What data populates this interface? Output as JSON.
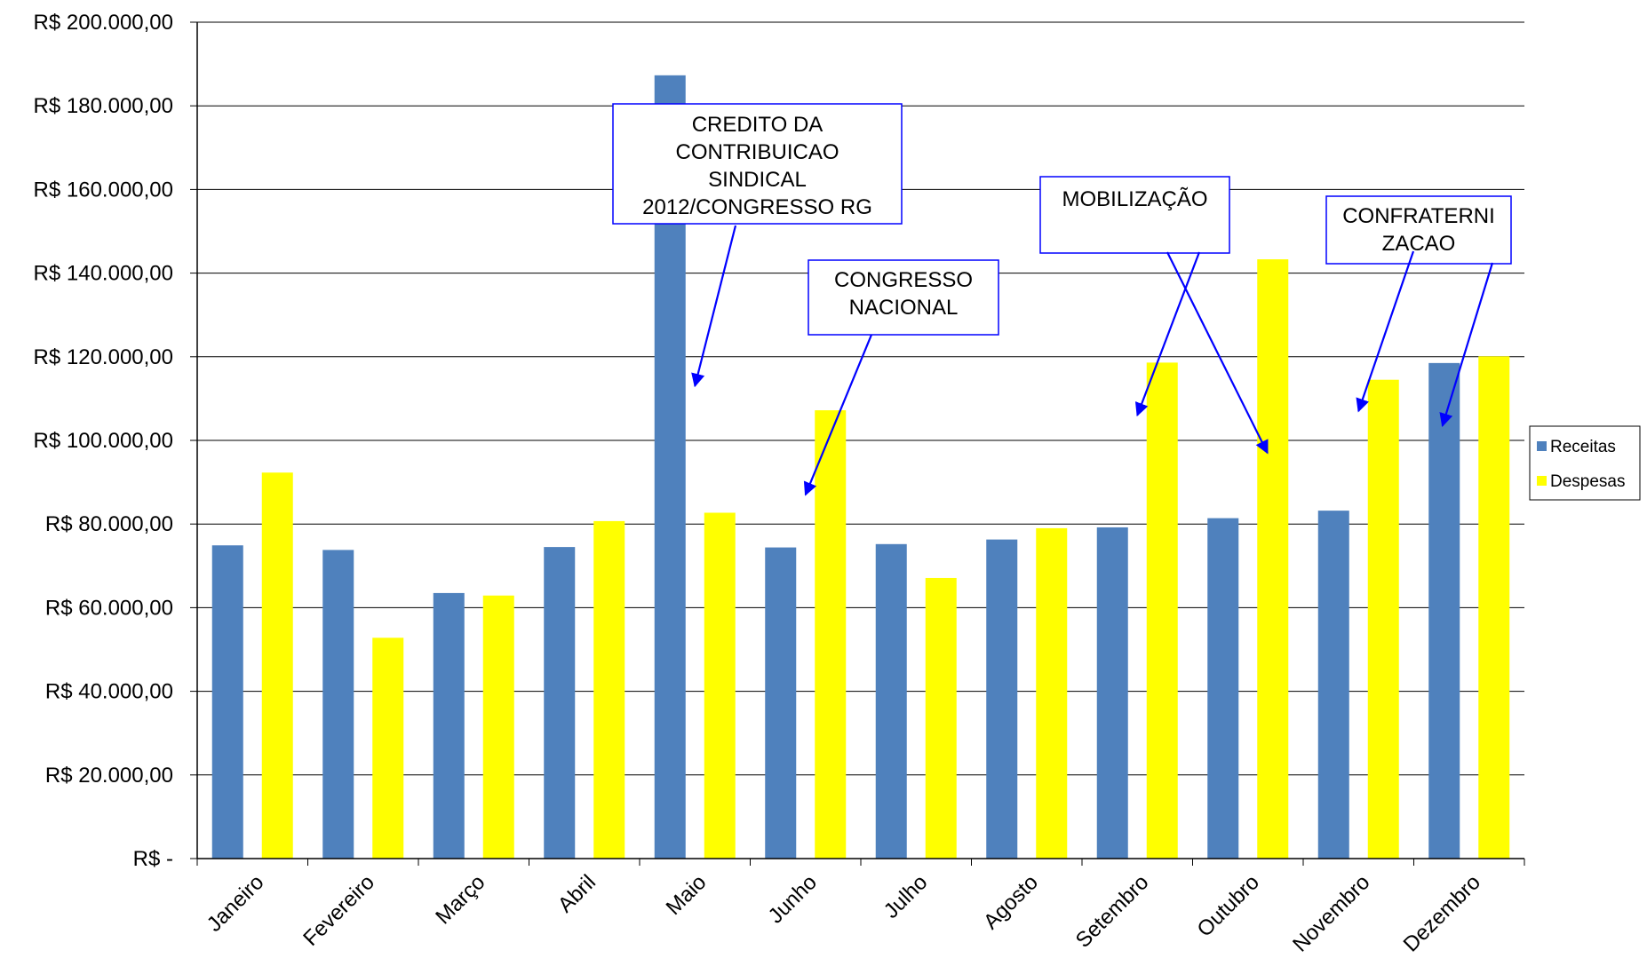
{
  "chart_data": {
    "type": "bar",
    "categories": [
      "Janeiro",
      "Fevereiro",
      "Março",
      "Abril",
      "Maio",
      "Junho",
      "Julho",
      "Agosto",
      "Setembro",
      "Outubro",
      "Novembro",
      "Dezembro"
    ],
    "series": [
      {
        "name": "Receitas",
        "color": "#4f81bd",
        "values": [
          74900,
          73800,
          63500,
          74500,
          187300,
          74400,
          75200,
          76300,
          79200,
          81400,
          83200,
          118500
        ]
      },
      {
        "name": "Despesas",
        "color": "#ffff00",
        "values": [
          92300,
          52800,
          62900,
          80700,
          82700,
          107200,
          67100,
          79000,
          118600,
          143300,
          114500,
          120100
        ]
      }
    ],
    "ylim": [
      0,
      200000
    ],
    "ytick_values": [
      0,
      20000,
      40000,
      60000,
      80000,
      100000,
      120000,
      140000,
      160000,
      180000,
      200000
    ],
    "ytick_labels": [
      "R$ -",
      "R$ 20.000,00",
      "R$ 40.000,00",
      "R$ 60.000,00",
      "R$ 80.000,00",
      "R$ 100.000,00",
      "R$ 120.000,00",
      "R$ 140.000,00",
      "R$ 160.000,00",
      "R$ 180.000,00",
      "R$ 200.000,00"
    ],
    "grid": true,
    "legend_position": "right",
    "annotations": [
      {
        "text": [
          "CREDITO DA",
          "CONTRIBUICAO",
          "SINDICAL",
          "2012/CONGRESSO RG"
        ],
        "targets": [
          {
            "category": "Maio",
            "value": 113000
          }
        ]
      },
      {
        "text": [
          "CONGRESSO",
          "NACIONAL"
        ],
        "targets": [
          {
            "category": "Junho",
            "value": 87000
          }
        ]
      },
      {
        "text": [
          "MOBILIZAÇÃO"
        ],
        "targets": [
          {
            "category": "Setembro",
            "value": 106000
          },
          {
            "category": "Outubro",
            "value": 97000
          }
        ]
      },
      {
        "text": [
          "CONFRATERNI",
          "ZACAO"
        ],
        "targets": [
          {
            "category": "Novembro",
            "value": 107000
          },
          {
            "category": "Dezembro",
            "value": 103500
          }
        ]
      }
    ]
  }
}
